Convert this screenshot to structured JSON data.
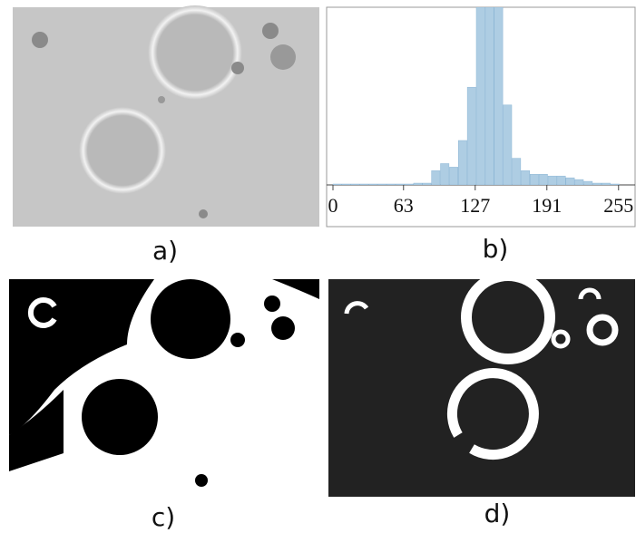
{
  "labels": {
    "a": "a)",
    "b": "b)",
    "c": "c)",
    "d": "d)"
  },
  "chart_data": {
    "type": "histogram",
    "color": "#aecde3",
    "bins": [
      0,
      8,
      16,
      24,
      32,
      40,
      48,
      56,
      64,
      72,
      80,
      88,
      96,
      104,
      112,
      120,
      128,
      136,
      144,
      152,
      160,
      168,
      176,
      184,
      192,
      200,
      208,
      216,
      224,
      232,
      240,
      248,
      256
    ],
    "values": [
      0.5,
      0.5,
      0.5,
      0.5,
      0.5,
      0.5,
      0.5,
      0.5,
      0.5,
      1,
      1,
      8,
      12,
      10,
      25,
      55,
      100,
      100,
      100,
      45,
      15,
      8,
      6,
      6,
      5,
      5,
      4,
      3,
      2,
      1,
      1,
      0.5
    ],
    "xlim": [
      0,
      256
    ],
    "ylim": [
      0,
      100
    ],
    "xticks": [
      0,
      63,
      127,
      191,
      255
    ]
  }
}
